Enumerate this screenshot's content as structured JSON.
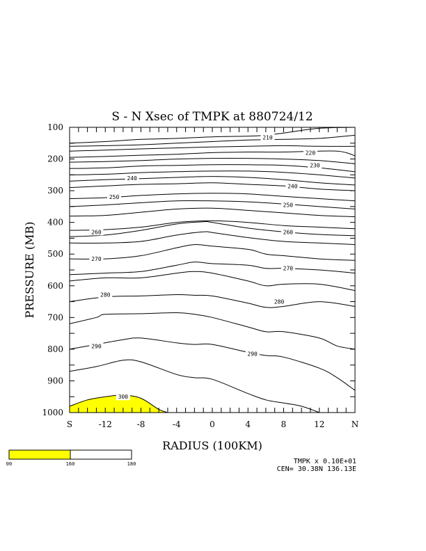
{
  "colors": {
    "fill": "#ffff00",
    "line": "#000000",
    "background": "#ffffff"
  },
  "chart_data": {
    "type": "contour",
    "title": "S - N Xsec of TMPK at 880724/12",
    "xlabel": "RADIUS (100KM)",
    "ylabel": "PRESSURE (MB)",
    "xlim": [
      -16,
      16
    ],
    "ylim": [
      1000,
      100
    ],
    "x_ticks": [
      {
        "value": -16,
        "label": "S"
      },
      {
        "value": -12,
        "label": "-12"
      },
      {
        "value": -8,
        "label": "-8"
      },
      {
        "value": -4,
        "label": "-4"
      },
      {
        "value": 0,
        "label": "0"
      },
      {
        "value": 4,
        "label": "4"
      },
      {
        "value": 8,
        "label": "8"
      },
      {
        "value": 12,
        "label": "12"
      },
      {
        "value": 16,
        "label": "N"
      }
    ],
    "y_ticks": [
      {
        "value": 100,
        "label": "100"
      },
      {
        "value": 200,
        "label": "200"
      },
      {
        "value": 300,
        "label": "300"
      },
      {
        "value": 400,
        "label": "400"
      },
      {
        "value": 500,
        "label": "500"
      },
      {
        "value": 600,
        "label": "600"
      },
      {
        "value": 700,
        "label": "700"
      },
      {
        "value": 800,
        "label": "800"
      },
      {
        "value": 900,
        "label": "900"
      },
      {
        "value": 1000,
        "label": "1000"
      }
    ],
    "contours": [
      {
        "points": [
          [
            -16,
            150
          ],
          [
            -12,
            145
          ],
          [
            -8,
            138
          ],
          [
            -4,
            135
          ],
          [
            0,
            130
          ],
          [
            4,
            128
          ],
          [
            6,
            125
          ],
          [
            8,
            118
          ],
          [
            12,
            103
          ],
          [
            16,
            85
          ]
        ]
      },
      {
        "label": "210",
        "label_at": [
          6.2,
          132
        ],
        "points": [
          [
            -16,
            160
          ],
          [
            -12,
            158
          ],
          [
            -8,
            155
          ],
          [
            -4,
            150
          ],
          [
            0,
            145
          ],
          [
            4,
            140
          ],
          [
            8,
            138
          ],
          [
            12,
            135
          ],
          [
            16,
            125
          ]
        ]
      },
      {
        "points": [
          [
            -16,
            175
          ],
          [
            -12,
            172
          ],
          [
            -8,
            168
          ],
          [
            -4,
            165
          ],
          [
            0,
            162
          ],
          [
            4,
            160
          ],
          [
            8,
            158
          ],
          [
            12,
            160
          ],
          [
            16,
            160
          ]
        ]
      },
      {
        "label": "220",
        "label_at": [
          11,
          180
        ],
        "points": [
          [
            -16,
            195
          ],
          [
            -12,
            192
          ],
          [
            -8,
            188
          ],
          [
            -4,
            185
          ],
          [
            0,
            180
          ],
          [
            4,
            178
          ],
          [
            8,
            178
          ],
          [
            12,
            175
          ],
          [
            14,
            175
          ],
          [
            15,
            180
          ],
          [
            16,
            190
          ]
        ]
      },
      {
        "points": [
          [
            -16,
            210
          ],
          [
            -12,
            208
          ],
          [
            -8,
            205
          ],
          [
            -4,
            200
          ],
          [
            0,
            198
          ],
          [
            4,
            198
          ],
          [
            8,
            200
          ],
          [
            12,
            205
          ],
          [
            16,
            215
          ]
        ]
      },
      {
        "label": "230",
        "label_at": [
          11.5,
          220
        ],
        "points": [
          [
            -16,
            230
          ],
          [
            -12,
            228
          ],
          [
            -8,
            222
          ],
          [
            -4,
            220
          ],
          [
            0,
            218
          ],
          [
            4,
            218
          ],
          [
            8,
            220
          ],
          [
            12,
            228
          ],
          [
            16,
            240
          ]
        ]
      },
      {
        "points": [
          [
            -16,
            250
          ],
          [
            -12,
            248
          ],
          [
            -8,
            243
          ],
          [
            -4,
            240
          ],
          [
            0,
            238
          ],
          [
            4,
            238
          ],
          [
            8,
            242
          ],
          [
            12,
            250
          ],
          [
            16,
            260
          ]
        ]
      },
      {
        "label": "240",
        "label_at": [
          -9,
          260
        ],
        "points": [
          [
            -16,
            270
          ],
          [
            -12,
            265
          ],
          [
            -8,
            262
          ],
          [
            -4,
            258
          ],
          [
            0,
            255
          ],
          [
            4,
            258
          ],
          [
            8,
            265
          ],
          [
            12,
            275
          ],
          [
            16,
            282
          ]
        ]
      },
      {
        "label": "240",
        "label_at": [
          9,
          285
        ],
        "points": [
          [
            -16,
            290
          ],
          [
            -12,
            285
          ],
          [
            -8,
            280
          ],
          [
            -4,
            278
          ],
          [
            0,
            275
          ],
          [
            4,
            280
          ],
          [
            8,
            285
          ],
          [
            12,
            295
          ],
          [
            16,
            300
          ]
        ]
      },
      {
        "label": "250",
        "label_at": [
          -11,
          320
        ],
        "points": [
          [
            -16,
            325
          ],
          [
            -12,
            322
          ],
          [
            -8,
            315
          ],
          [
            -4,
            310
          ],
          [
            0,
            308
          ],
          [
            4,
            310
          ],
          [
            8,
            318
          ],
          [
            12,
            325
          ],
          [
            16,
            332
          ]
        ]
      },
      {
        "label": "250",
        "label_at": [
          8.5,
          345
        ],
        "points": [
          [
            -16,
            350
          ],
          [
            -12,
            345
          ],
          [
            -8,
            338
          ],
          [
            -4,
            332
          ],
          [
            0,
            332
          ],
          [
            4,
            335
          ],
          [
            8,
            342
          ],
          [
            12,
            350
          ],
          [
            16,
            358
          ]
        ]
      },
      {
        "points": [
          [
            -16,
            380
          ],
          [
            -12,
            378
          ],
          [
            -8,
            368
          ],
          [
            -4,
            358
          ],
          [
            0,
            355
          ],
          [
            4,
            362
          ],
          [
            8,
            370
          ],
          [
            12,
            378
          ],
          [
            16,
            382
          ]
        ]
      },
      {
        "label": "260",
        "label_at": [
          -13,
          430
        ],
        "points": [
          [
            -16,
            425
          ],
          [
            -12,
            423
          ],
          [
            -8,
            415
          ],
          [
            -4,
            400
          ],
          [
            0,
            395
          ],
          [
            4,
            400
          ],
          [
            8,
            410
          ],
          [
            12,
            415
          ],
          [
            16,
            420
          ]
        ]
      },
      {
        "label": "260",
        "label_at": [
          8.5,
          430
        ],
        "points": [
          [
            -16,
            445
          ],
          [
            -12,
            440
          ],
          [
            -8,
            425
          ],
          [
            -4,
            405
          ],
          [
            -1,
            398
          ],
          [
            0,
            400
          ],
          [
            4,
            418
          ],
          [
            8,
            430
          ],
          [
            12,
            438
          ],
          [
            16,
            442
          ]
        ]
      },
      {
        "points": [
          [
            -16,
            465
          ],
          [
            -12,
            465
          ],
          [
            -8,
            460
          ],
          [
            -4,
            440
          ],
          [
            -1,
            430
          ],
          [
            0,
            432
          ],
          [
            4,
            448
          ],
          [
            8,
            460
          ],
          [
            12,
            465
          ],
          [
            16,
            470
          ]
        ]
      },
      {
        "label": "270",
        "label_at": [
          -13,
          515
        ],
        "points": [
          [
            -16,
            515
          ],
          [
            -12,
            515
          ],
          [
            -8,
            505
          ],
          [
            -4,
            480
          ],
          [
            -2,
            470
          ],
          [
            0,
            475
          ],
          [
            4,
            485
          ],
          [
            6,
            500
          ],
          [
            8,
            505
          ],
          [
            12,
            515
          ],
          [
            16,
            520
          ]
        ]
      },
      {
        "label": "270",
        "label_at": [
          8.5,
          545
        ],
        "points": [
          [
            -16,
            565
          ],
          [
            -12,
            560
          ],
          [
            -8,
            555
          ],
          [
            -4,
            535
          ],
          [
            -2,
            525
          ],
          [
            0,
            530
          ],
          [
            4,
            535
          ],
          [
            6,
            545
          ],
          [
            8,
            545
          ],
          [
            12,
            550
          ],
          [
            16,
            560
          ]
        ]
      },
      {
        "points": [
          [
            -16,
            585
          ],
          [
            -12,
            575
          ],
          [
            -8,
            575
          ],
          [
            -4,
            560
          ],
          [
            -2,
            555
          ],
          [
            0,
            560
          ],
          [
            4,
            585
          ],
          [
            6,
            600
          ],
          [
            8,
            595
          ],
          [
            12,
            595
          ],
          [
            16,
            615
          ]
        ]
      },
      {
        "label": "280",
        "label_at": [
          -12,
          628
        ],
        "points": [
          [
            -16,
            650
          ],
          [
            -12,
            635
          ],
          [
            -8,
            632
          ],
          [
            -4,
            628
          ],
          [
            -2,
            630
          ],
          [
            0,
            632
          ],
          [
            4,
            655
          ],
          [
            6,
            668
          ],
          [
            8,
            665
          ],
          [
            12,
            650
          ],
          [
            16,
            665
          ]
        ]
      },
      {
        "label": "280",
        "label_at": [
          7.5,
          650
        ],
        "points": [
          [
            -16,
            720
          ],
          [
            -13,
            700
          ],
          [
            -12,
            690
          ],
          [
            -8,
            688
          ],
          [
            -4,
            685
          ],
          [
            -2,
            690
          ],
          [
            0,
            700
          ],
          [
            4,
            730
          ],
          [
            6,
            745
          ],
          [
            8,
            745
          ],
          [
            12,
            765
          ],
          [
            14,
            790
          ],
          [
            16,
            800
          ]
        ]
      },
      {
        "label": "290",
        "label_at": [
          -13,
          790
        ],
        "points": [
          [
            -16,
            800
          ],
          [
            -13,
            785
          ],
          [
            -10,
            770
          ],
          [
            -8,
            765
          ],
          [
            -4,
            780
          ],
          [
            -2,
            785
          ],
          [
            0,
            785
          ],
          [
            4,
            810
          ],
          [
            6,
            820
          ],
          [
            8,
            825
          ],
          [
            12,
            860
          ],
          [
            14,
            890
          ],
          [
            16,
            930
          ]
        ]
      },
      {
        "label": "290",
        "label_at": [
          4.5,
          815
        ],
        "points": [
          [
            -16,
            870
          ],
          [
            -13,
            855
          ],
          [
            -10,
            835
          ],
          [
            -8,
            840
          ],
          [
            -4,
            880
          ],
          [
            -2,
            890
          ],
          [
            0,
            895
          ],
          [
            4,
            940
          ],
          [
            6,
            960
          ],
          [
            8,
            970
          ],
          [
            10,
            980
          ],
          [
            12,
            1000
          ]
        ]
      },
      {
        "label": "300",
        "label_at": [
          -10,
          950
        ],
        "fill": true,
        "points": [
          [
            -16,
            980
          ],
          [
            -14,
            960
          ],
          [
            -12,
            950
          ],
          [
            -10,
            945
          ],
          [
            -8,
            955
          ],
          [
            -6,
            990
          ],
          [
            -5,
            1000
          ]
        ]
      }
    ],
    "filled_region": {
      "contour": "300",
      "color": "#ffff00"
    },
    "legend": {
      "colors": [
        "#ffff00",
        "#ffffff"
      ],
      "labels": [
        "00",
        "160",
        "180"
      ]
    },
    "info": [
      "TMPK x  0.10E+01",
      "CEN= 30.38N  136.13E"
    ]
  }
}
